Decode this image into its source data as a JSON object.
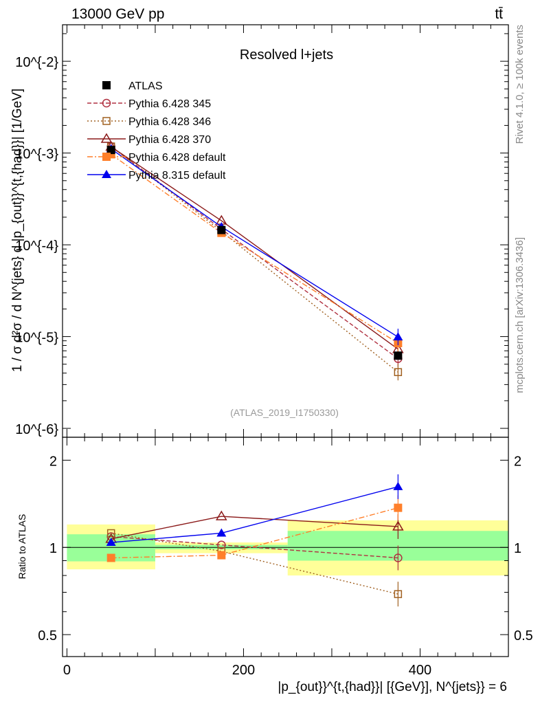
{
  "header": {
    "left": "13000 GeV pp",
    "right": "tt̄"
  },
  "side_labels": {
    "top": "Rivet 4.1.0, ≥ 100k events",
    "bottom": "mcplots.cern.ch [arXiv:1306.3436]"
  },
  "chart_data": [
    {
      "type": "line",
      "panel": "main",
      "title": "Resolved l+jets",
      "analysis_id": "(ATLAS_2019_I1750330)",
      "ylabel": "1 / σ d²σ / d N^{jets} d |p_{out}}^{t,{had}}| [1/GeV]",
      "yscale": "log",
      "ylim": [
        8e-07,
        0.025
      ],
      "xlim": [
        -5,
        500
      ],
      "x": [
        50,
        175,
        375
      ],
      "x_bin_edges": [
        0,
        100,
        250,
        500
      ],
      "y_ticks": [
        "10^{-6}",
        "10^{-5}",
        "10^{-4}",
        "10^{-3}",
        "10^{-2}"
      ],
      "series": [
        {
          "name": "ATLAS",
          "color": "#000000",
          "marker": "filled-square",
          "dash": "none",
          "values": [
            0.00108,
            0.000145,
            6.2e-06
          ]
        },
        {
          "name": "Pythia 6.428 345",
          "color": "#b03040",
          "marker": "open-circle",
          "dash": "dashed",
          "values": [
            0.00118,
            0.000148,
            5.75e-06
          ]
        },
        {
          "name": "Pythia 6.428 346",
          "color": "#a06020",
          "marker": "open-square",
          "dash": "dotted",
          "values": [
            0.00118,
            0.00014,
            4.1e-06
          ]
        },
        {
          "name": "Pythia 6.428 370",
          "color": "#8b1a1a",
          "marker": "open-triangle",
          "dash": "solid",
          "values": [
            0.00117,
            0.000183,
            7.3e-06
          ]
        },
        {
          "name": "Pythia 6.428 default",
          "color": "#ff7f2a",
          "marker": "filled-square",
          "dash": "dashdot",
          "values": [
            0.00097,
            0.000135,
            8.5e-06
          ]
        },
        {
          "name": "Pythia 8.315 default",
          "color": "#0000ee",
          "marker": "filled-triangle",
          "dash": "solid",
          "values": [
            0.00111,
            0.000157,
            9.9e-06
          ]
        }
      ]
    },
    {
      "type": "line",
      "panel": "ratio",
      "ylabel": "Ratio to ATLAS",
      "xlabel": "|p_{out}}^{t,{had}}| [{GeV}], N^{jets}} = 6",
      "yscale": "log",
      "ylim": [
        0.42,
        2.4
      ],
      "y_ticks": [
        "0.5",
        "1",
        "2"
      ],
      "x_ticks": [
        "0",
        "200",
        "400"
      ],
      "band_green": [
        [
          0.895,
          1.11
        ],
        [
          0.985,
          1.02
        ],
        [
          0.9,
          1.14
        ]
      ],
      "band_yellow": [
        [
          0.84,
          1.2
        ],
        [
          0.955,
          1.04
        ],
        [
          0.8,
          1.24
        ]
      ],
      "series": [
        {
          "name": "Pythia 6.428 345",
          "values": [
            1.09,
            1.02,
            0.92
          ]
        },
        {
          "name": "Pythia 6.428 346",
          "values": [
            1.12,
            0.97,
            0.69
          ]
        },
        {
          "name": "Pythia 6.428 370",
          "values": [
            1.07,
            1.28,
            1.18
          ]
        },
        {
          "name": "Pythia 6.428 default",
          "values": [
            0.92,
            0.94,
            1.37
          ]
        },
        {
          "name": "Pythia 8.315 default",
          "values": [
            1.04,
            1.12,
            1.62
          ]
        }
      ]
    }
  ]
}
